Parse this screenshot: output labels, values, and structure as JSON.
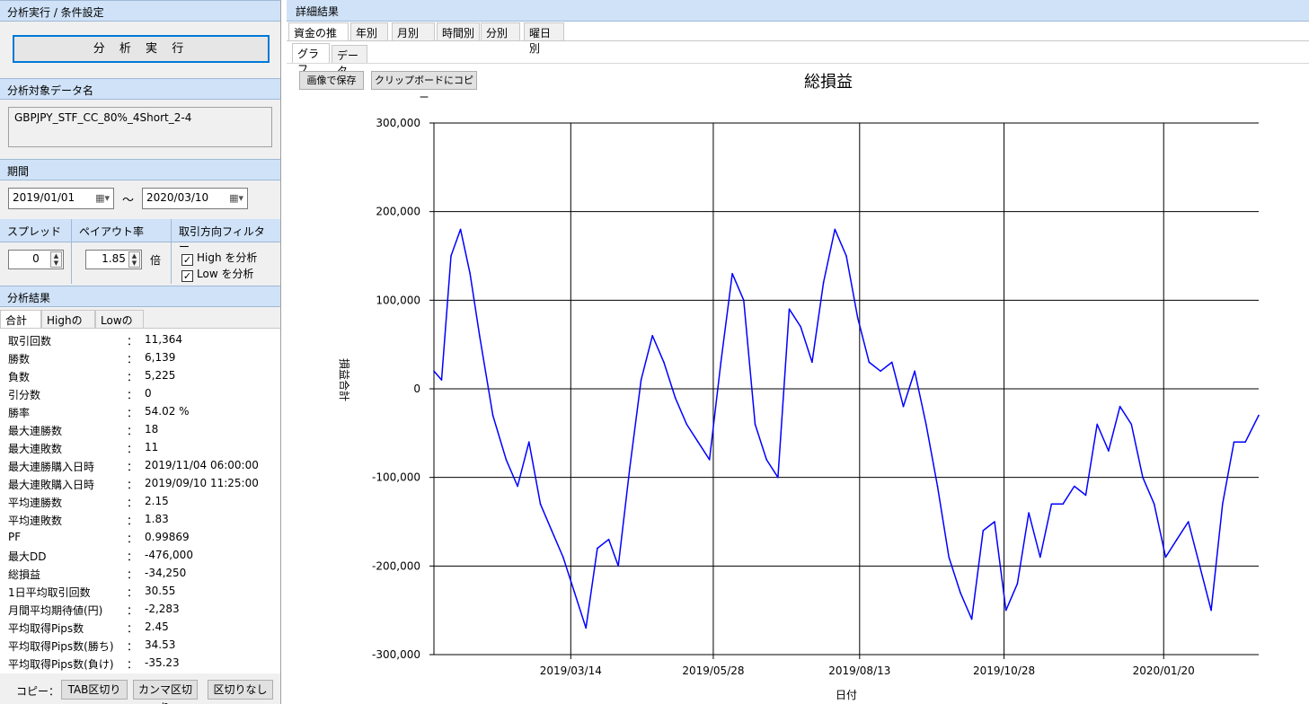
{
  "left": {
    "header_run": "分析実行 / 条件設定",
    "run_button": "分 析 実 行",
    "header_name": "分析対象データ名",
    "data_name": "GBPJPY_STF_CC_80%_4Short_2-4",
    "header_period": "期間",
    "date_from": "2019/01/01",
    "date_to": "2020/03/10",
    "tilde": "～",
    "header_spread": "スプレッド",
    "spread_value": "0",
    "header_payout": "ペイアウト率",
    "payout_value": "1.85",
    "payout_unit": "倍",
    "header_filter": "取引方向フィルター",
    "check_high": "High を分析",
    "check_low": "Low を分析",
    "header_result": "分析結果",
    "tabs": [
      "合計",
      "Highのみ",
      "Lowのみ"
    ],
    "stats": [
      {
        "label": "取引回数",
        "value": "11,364"
      },
      {
        "label": "勝数",
        "value": "6,139"
      },
      {
        "label": "負数",
        "value": "5,225"
      },
      {
        "label": "引分数",
        "value": "0"
      },
      {
        "label": "勝率",
        "value": "54.02 %"
      },
      {
        "label": "最大連勝数",
        "value": "18"
      },
      {
        "label": "最大連敗数",
        "value": "11"
      },
      {
        "label": "最大連勝購入日時",
        "value": "2019/11/04 06:00:00"
      },
      {
        "label": "最大連敗購入日時",
        "value": "2019/09/10 11:25:00"
      },
      {
        "label": "平均連勝数",
        "value": "2.15"
      },
      {
        "label": "平均連敗数",
        "value": "1.83"
      },
      {
        "label": "PF",
        "value": "0.99869"
      },
      {
        "label": "最大DD",
        "value": "-476,000"
      },
      {
        "label": "総損益",
        "value": "-34,250"
      },
      {
        "label": "1日平均取引回数",
        "value": "30.55"
      },
      {
        "label": "月間平均期待値(円)",
        "value": "-2,283"
      },
      {
        "label": "平均取得Pips数",
        "value": "2.45"
      },
      {
        "label": "平均取得Pips数(勝ち)",
        "value": "34.53"
      },
      {
        "label": "平均取得Pips数(負け)",
        "value": "-35.23"
      }
    ],
    "colon": "：",
    "copy_label": "コピー：",
    "copy_buttons": [
      "TAB区切り",
      "カンマ区切り",
      "区切りなし"
    ]
  },
  "right": {
    "header": "詳細結果",
    "tabs": [
      "資金の推移",
      "年別",
      "月別",
      "時間別",
      "分別",
      "曜日別"
    ],
    "subtabs": [
      "グラフ",
      "データ"
    ],
    "save_button": "画像で保存",
    "copy_button": "クリップボードにコピー"
  },
  "chart_data": {
    "type": "line",
    "title": "総損益",
    "xlabel": "日付",
    "ylabel": "損益合計",
    "ylim": [
      -300000,
      300000
    ],
    "yticks": [
      300000,
      200000,
      100000,
      0,
      -100000,
      -200000,
      -300000
    ],
    "ytick_labels": [
      "300,000",
      "200,000",
      "100,000",
      "0",
      "-100,000",
      "-200,000",
      "-300,000"
    ],
    "xlim": [
      "2019-01-01",
      "2020-03-10"
    ],
    "xticks": [
      "2019-03-14",
      "2019-05-28",
      "2019-08-13",
      "2019-10-28",
      "2020-01-20"
    ],
    "xtick_labels": [
      "2019/03/14",
      "2019/05/28",
      "2019/08/13",
      "2019/10/28",
      "2020/01/20"
    ],
    "grid": true,
    "color": "#0000ff",
    "series": [
      {
        "x": [
          "2019-01-01",
          "2019-01-05",
          "2019-01-10",
          "2019-01-15",
          "2019-01-20",
          "2019-01-25",
          "2019-02-01",
          "2019-02-08",
          "2019-02-14",
          "2019-02-20",
          "2019-02-26",
          "2019-03-04",
          "2019-03-10",
          "2019-03-16",
          "2019-03-22",
          "2019-03-28",
          "2019-04-03",
          "2019-04-08",
          "2019-04-14",
          "2019-04-20",
          "2019-04-26",
          "2019-05-02",
          "2019-05-08",
          "2019-05-14",
          "2019-05-20",
          "2019-05-26",
          "2019-06-01",
          "2019-06-07",
          "2019-06-13",
          "2019-06-19",
          "2019-06-25",
          "2019-07-01",
          "2019-07-07",
          "2019-07-13",
          "2019-07-19",
          "2019-07-25",
          "2019-07-31",
          "2019-08-06",
          "2019-08-12",
          "2019-08-18",
          "2019-08-24",
          "2019-08-30",
          "2019-09-05",
          "2019-09-11",
          "2019-09-17",
          "2019-09-23",
          "2019-09-29",
          "2019-10-05",
          "2019-10-11",
          "2019-10-17",
          "2019-10-23",
          "2019-10-29",
          "2019-11-04",
          "2019-11-10",
          "2019-11-16",
          "2019-11-22",
          "2019-11-28",
          "2019-12-04",
          "2019-12-10",
          "2019-12-16",
          "2019-12-22",
          "2019-12-28",
          "2020-01-03",
          "2020-01-09",
          "2020-01-15",
          "2020-01-21",
          "2020-01-27",
          "2020-02-02",
          "2020-02-08",
          "2020-02-14",
          "2020-02-20",
          "2020-02-26",
          "2020-03-03",
          "2020-03-10"
        ],
        "y": [
          20000,
          10000,
          150000,
          180000,
          130000,
          60000,
          -30000,
          -80000,
          -110000,
          -60000,
          -130000,
          -160000,
          -190000,
          -230000,
          -270000,
          -180000,
          -170000,
          -200000,
          -90000,
          10000,
          60000,
          30000,
          -10000,
          -40000,
          -60000,
          -80000,
          30000,
          130000,
          100000,
          -40000,
          -80000,
          -100000,
          90000,
          70000,
          30000,
          120000,
          180000,
          150000,
          80000,
          30000,
          20000,
          30000,
          -20000,
          20000,
          -40000,
          -110000,
          -190000,
          -230000,
          -260000,
          -160000,
          -150000,
          -250000,
          -220000,
          -140000,
          -190000,
          -130000,
          -130000,
          -110000,
          -120000,
          -40000,
          -70000,
          -20000,
          -40000,
          -100000,
          -130000,
          -190000,
          -170000,
          -150000,
          -200000,
          -250000,
          -130000,
          -60000,
          -60000,
          -30000
        ]
      }
    ]
  }
}
